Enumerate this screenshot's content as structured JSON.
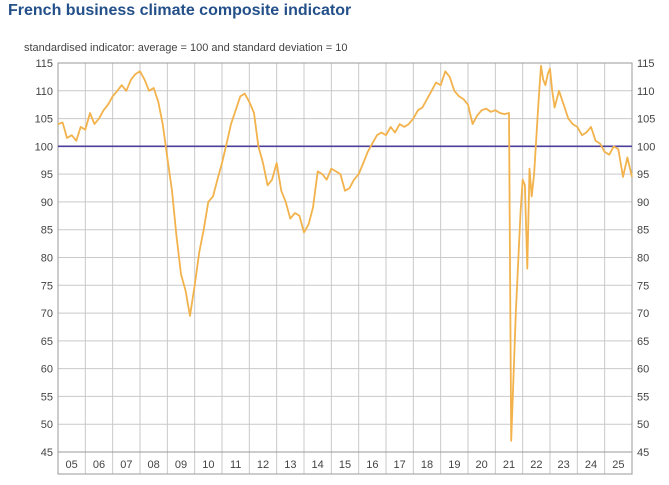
{
  "title": "French business climate composite indicator",
  "subtitle": "standardised indicator: average = 100 and standard deviation = 10",
  "colors": {
    "series": "#f2b24c",
    "reference": "#4b3f99",
    "grid": "#c9c9c9",
    "title": "#24508a"
  },
  "chart_data": {
    "type": "line",
    "ylim": [
      45,
      115
    ],
    "yticks": [
      45,
      50,
      55,
      60,
      65,
      70,
      75,
      80,
      85,
      90,
      95,
      100,
      105,
      110,
      115
    ],
    "xlim": [
      2005.0,
      2026.0
    ],
    "xtick_labels": [
      "05",
      "06",
      "07",
      "08",
      "09",
      "10",
      "11",
      "12",
      "13",
      "14",
      "15",
      "16",
      "17",
      "18",
      "19",
      "20",
      "21",
      "22",
      "23",
      "24",
      "25"
    ],
    "grid": true,
    "reference_line": 100,
    "series": [
      {
        "values": [
          [
            2005.0,
            104.0
          ],
          [
            2005.17,
            104.3
          ],
          [
            2005.33,
            101.5
          ],
          [
            2005.5,
            102.0
          ],
          [
            2005.67,
            101.0
          ],
          [
            2005.83,
            103.5
          ],
          [
            2006.0,
            103.0
          ],
          [
            2006.17,
            106.0
          ],
          [
            2006.33,
            104.0
          ],
          [
            2006.5,
            105.0
          ],
          [
            2006.67,
            106.5
          ],
          [
            2006.83,
            107.5
          ],
          [
            2007.0,
            109.0
          ],
          [
            2007.17,
            110.0
          ],
          [
            2007.33,
            111.0
          ],
          [
            2007.5,
            110.0
          ],
          [
            2007.67,
            112.0
          ],
          [
            2007.83,
            113.0
          ],
          [
            2008.0,
            113.5
          ],
          [
            2008.17,
            112.0
          ],
          [
            2008.33,
            110.0
          ],
          [
            2008.5,
            110.5
          ],
          [
            2008.67,
            108.0
          ],
          [
            2008.83,
            104.0
          ],
          [
            2009.0,
            98.0
          ],
          [
            2009.17,
            92.0
          ],
          [
            2009.33,
            84.0
          ],
          [
            2009.5,
            77.0
          ],
          [
            2009.67,
            74.0
          ],
          [
            2009.83,
            69.5
          ],
          [
            2010.0,
            75.0
          ],
          [
            2010.17,
            81.0
          ],
          [
            2010.33,
            85.0
          ],
          [
            2010.5,
            90.0
          ],
          [
            2010.67,
            91.0
          ],
          [
            2010.83,
            94.0
          ],
          [
            2011.0,
            97.0
          ],
          [
            2011.17,
            100.5
          ],
          [
            2011.33,
            104.0
          ],
          [
            2011.5,
            106.5
          ],
          [
            2011.67,
            109.0
          ],
          [
            2011.83,
            109.5
          ],
          [
            2012.0,
            108.0
          ],
          [
            2012.17,
            106.0
          ],
          [
            2012.33,
            100.0
          ],
          [
            2012.5,
            97.0
          ],
          [
            2012.67,
            93.0
          ],
          [
            2012.83,
            94.0
          ],
          [
            2013.0,
            97.0
          ],
          [
            2013.17,
            92.0
          ],
          [
            2013.33,
            90.0
          ],
          [
            2013.5,
            87.0
          ],
          [
            2013.67,
            88.0
          ],
          [
            2013.83,
            87.5
          ],
          [
            2014.0,
            84.5
          ],
          [
            2014.17,
            86.0
          ],
          [
            2014.33,
            89.0
          ],
          [
            2014.5,
            95.5
          ],
          [
            2014.67,
            95.0
          ],
          [
            2014.83,
            94.0
          ],
          [
            2015.0,
            96.0
          ],
          [
            2015.17,
            95.5
          ],
          [
            2015.33,
            95.0
          ],
          [
            2015.5,
            92.0
          ],
          [
            2015.67,
            92.5
          ],
          [
            2015.83,
            94.0
          ],
          [
            2016.0,
            95.0
          ],
          [
            2016.17,
            97.0
          ],
          [
            2016.33,
            99.0
          ],
          [
            2016.5,
            100.5
          ],
          [
            2016.67,
            102.0
          ],
          [
            2016.83,
            102.5
          ],
          [
            2017.0,
            102.0
          ],
          [
            2017.17,
            103.5
          ],
          [
            2017.33,
            102.5
          ],
          [
            2017.5,
            104.0
          ],
          [
            2017.67,
            103.5
          ],
          [
            2017.83,
            104.0
          ],
          [
            2018.0,
            105.0
          ],
          [
            2018.17,
            106.5
          ],
          [
            2018.33,
            107.0
          ],
          [
            2018.5,
            108.5
          ],
          [
            2018.67,
            110.0
          ],
          [
            2018.83,
            111.5
          ],
          [
            2019.0,
            111.0
          ],
          [
            2019.17,
            113.5
          ],
          [
            2019.33,
            112.5
          ],
          [
            2019.5,
            110.0
          ],
          [
            2019.67,
            109.0
          ],
          [
            2019.83,
            108.5
          ],
          [
            2020.0,
            107.5
          ],
          [
            2020.17,
            104.0
          ],
          [
            2020.33,
            105.5
          ],
          [
            2020.5,
            106.5
          ],
          [
            2020.67,
            106.8
          ],
          [
            2020.83,
            106.2
          ],
          [
            2021.0,
            106.5
          ],
          [
            2021.17,
            106.0
          ],
          [
            2021.33,
            105.8
          ],
          [
            2021.5,
            106.0
          ],
          [
            2021.58,
            47.0
          ],
          [
            2021.75,
            70.0
          ],
          [
            2021.92,
            88.0
          ],
          [
            2022.0,
            94.0
          ],
          [
            2022.08,
            93.0
          ],
          [
            2022.17,
            78.0
          ],
          [
            2022.25,
            96.0
          ],
          [
            2022.33,
            91.0
          ],
          [
            2022.42,
            95.0
          ],
          [
            2022.58,
            108.0
          ],
          [
            2022.67,
            114.5
          ],
          [
            2022.75,
            112.0
          ],
          [
            2022.83,
            111.0
          ],
          [
            2022.92,
            113.0
          ],
          [
            2023.0,
            114.0
          ],
          [
            2023.08,
            110.0
          ],
          [
            2023.17,
            107.0
          ],
          [
            2023.33,
            110.0
          ],
          [
            2023.5,
            107.5
          ],
          [
            2023.67,
            105.0
          ],
          [
            2023.83,
            104.0
          ],
          [
            2024.0,
            103.5
          ],
          [
            2024.17,
            102.0
          ],
          [
            2024.33,
            102.5
          ],
          [
            2024.5,
            103.5
          ],
          [
            2024.67,
            101.0
          ],
          [
            2024.83,
            100.5
          ],
          [
            2025.0,
            99.0
          ],
          [
            2025.17,
            98.5
          ],
          [
            2025.33,
            100.0
          ],
          [
            2025.5,
            99.5
          ],
          [
            2025.67,
            94.5
          ],
          [
            2025.83,
            98.0
          ],
          [
            2026.0,
            94.5
          ]
        ]
      }
    ]
  }
}
